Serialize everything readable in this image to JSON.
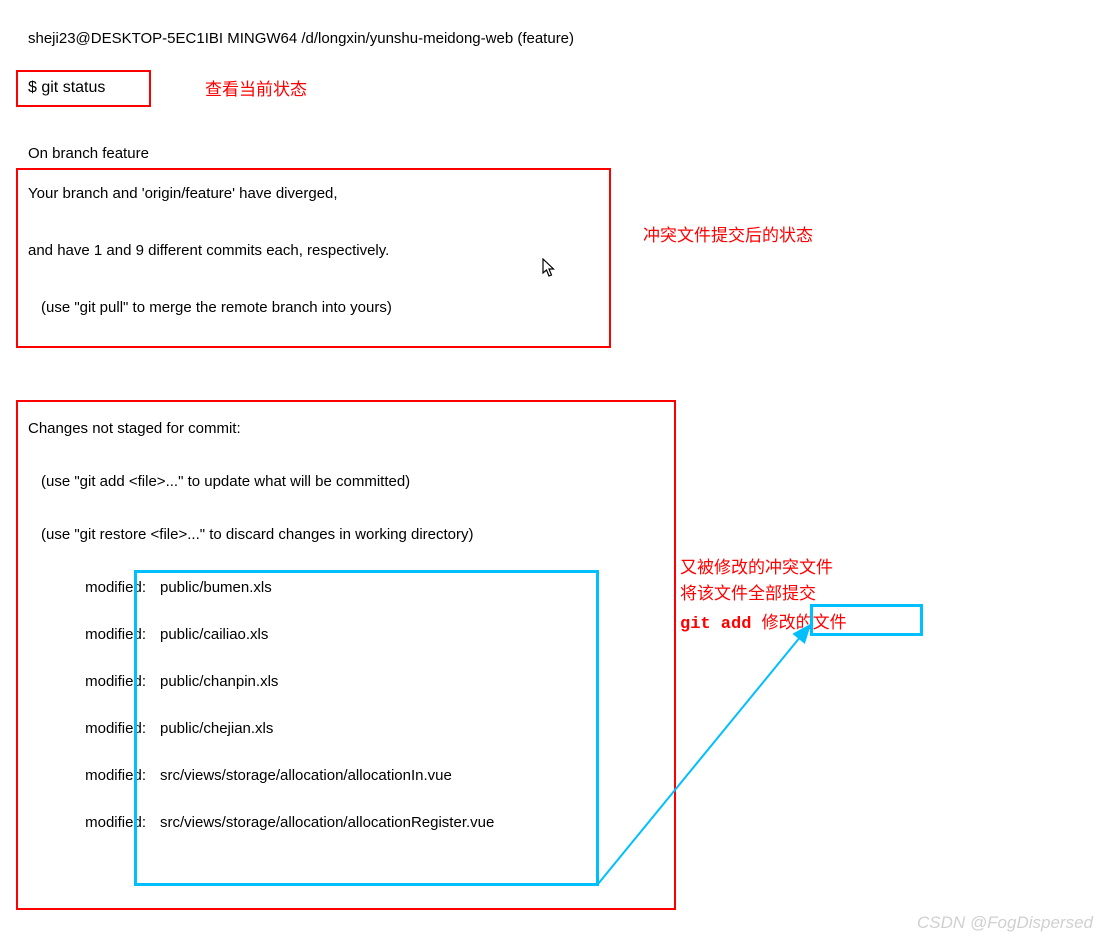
{
  "terminal": {
    "prompt_line": "sheji23@DESKTOP-5EC1IBI MINGW64 /d/longxin/yunshu-meidong-web (feature)",
    "command": "$ git status",
    "branch_line": "On branch feature",
    "diverged": {
      "line1": "Your branch and 'origin/feature' have diverged,",
      "line2": "and have 1 and 9 different commits each, respectively.",
      "line3": "(use \"git pull\" to merge the remote branch into yours)"
    },
    "changes": {
      "header": "Changes not staged for commit:",
      "hint1": "(use \"git add <file>...\" to update what will be committed)",
      "hint2": "(use \"git restore <file>...\" to discard changes in working directory)",
      "modified_label": "modified:",
      "files": [
        "public/bumen.xls",
        "public/cailiao.xls",
        "public/chanpin.xls",
        "public/chejian.xls",
        "src/views/storage/allocation/allocationIn.vue",
        "src/views/storage/allocation/allocationRegister.vue"
      ]
    }
  },
  "annotations": {
    "view_status": "查看当前状态",
    "conflict_state": "冲突文件提交后的状态",
    "modified_conflict_line1": "又被修改的冲突文件",
    "modified_conflict_line2": "将该文件全部提交",
    "git_add_cmd": "git add ",
    "git_add_suffix": "修改的文件"
  },
  "watermark": "CSDN @FogDispersed",
  "colors": {
    "red": "#ff0000",
    "cyan": "#00bfff",
    "text": "#000000",
    "bg": "#ffffff"
  }
}
